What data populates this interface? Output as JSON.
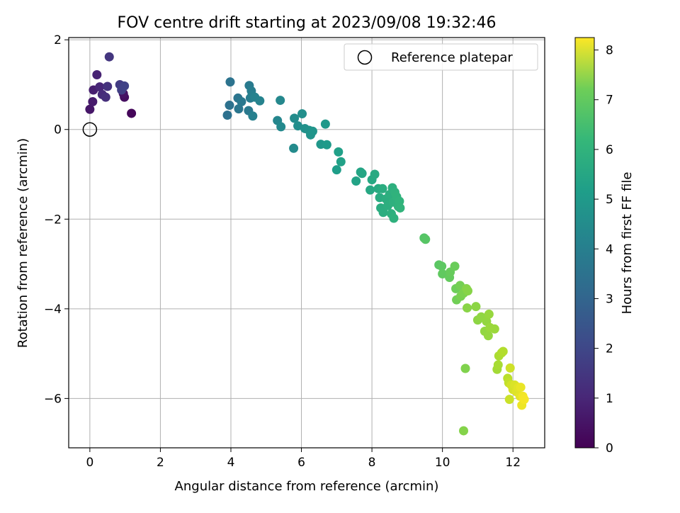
{
  "chart_data": {
    "type": "scatter",
    "title": "FOV centre drift starting at 2023/09/08 19:32:46",
    "xlabel": "Angular distance from reference (arcmin)",
    "ylabel": "Rotation from reference (arcmin)",
    "xlim": [
      -0.6,
      12.9
    ],
    "ylim": [
      -7.1,
      2.05
    ],
    "xticks": [
      0,
      2,
      4,
      6,
      8,
      10,
      12
    ],
    "yticks": [
      -6,
      -4,
      -2,
      0,
      2
    ],
    "xtick_labels": [
      "0",
      "2",
      "4",
      "6",
      "8",
      "10",
      "12"
    ],
    "ytick_labels": [
      "−6",
      "−4",
      "−2",
      "0",
      "2"
    ],
    "grid": true,
    "legend": {
      "placement": "top-right",
      "label": "Reference platepar"
    },
    "reference_point": {
      "x": 0,
      "y": 0
    },
    "colorbar": {
      "label": "Hours from first FF file",
      "range": [
        0,
        8.25
      ],
      "ticks": [
        0,
        1,
        2,
        3,
        4,
        5,
        6,
        7,
        8
      ],
      "tick_labels": [
        "0",
        "1",
        "2",
        "3",
        "4",
        "5",
        "6",
        "7",
        "8"
      ],
      "colormap": "viridis"
    },
    "points": [
      [
        1.18,
        0.36,
        0.15
      ],
      [
        0.98,
        0.72,
        0.3
      ],
      [
        0.95,
        0.8,
        0.4
      ],
      [
        0.0,
        0.45,
        0.5
      ],
      [
        0.08,
        0.62,
        0.6
      ],
      [
        0.1,
        0.88,
        0.7
      ],
      [
        0.2,
        1.22,
        0.8
      ],
      [
        0.28,
        0.95,
        0.9
      ],
      [
        0.35,
        0.78,
        1.0
      ],
      [
        0.45,
        0.72,
        1.1
      ],
      [
        0.5,
        0.96,
        1.2
      ],
      [
        0.55,
        1.62,
        1.3
      ],
      [
        0.85,
        1.0,
        1.45
      ],
      [
        0.9,
        0.88,
        1.55
      ],
      [
        0.98,
        0.97,
        1.65
      ],
      [
        3.9,
        0.32,
        3.05
      ],
      [
        3.96,
        0.54,
        3.1
      ],
      [
        3.98,
        1.06,
        3.15
      ],
      [
        4.2,
        0.7,
        3.2
      ],
      [
        4.22,
        0.46,
        3.25
      ],
      [
        4.3,
        0.62,
        3.3
      ],
      [
        4.5,
        0.42,
        3.35
      ],
      [
        4.52,
        0.98,
        3.4
      ],
      [
        4.55,
        0.7,
        3.45
      ],
      [
        4.58,
        0.86,
        3.5
      ],
      [
        4.6,
        0.76,
        3.55
      ],
      [
        4.62,
        0.3,
        3.6
      ],
      [
        4.68,
        0.72,
        3.65
      ],
      [
        4.82,
        0.64,
        3.7
      ],
      [
        5.32,
        0.2,
        3.8
      ],
      [
        5.4,
        0.65,
        3.85
      ],
      [
        5.42,
        0.06,
        3.9
      ],
      [
        5.78,
        -0.42,
        3.95
      ],
      [
        5.8,
        0.25,
        4.0
      ],
      [
        5.9,
        0.08,
        4.05
      ],
      [
        6.02,
        0.35,
        4.1
      ],
      [
        6.1,
        0.02,
        4.15
      ],
      [
        6.22,
        -0.02,
        4.2
      ],
      [
        6.26,
        -0.12,
        4.25
      ],
      [
        6.32,
        -0.04,
        4.3
      ],
      [
        6.55,
        -0.33,
        4.35
      ],
      [
        6.68,
        0.12,
        4.4
      ],
      [
        6.72,
        -0.34,
        4.45
      ],
      [
        7.0,
        -0.9,
        4.6
      ],
      [
        7.05,
        -0.5,
        4.65
      ],
      [
        7.12,
        -0.72,
        4.7
      ],
      [
        7.55,
        -1.15,
        4.75
      ],
      [
        7.68,
        -0.95,
        4.8
      ],
      [
        7.72,
        -0.98,
        4.85
      ],
      [
        7.95,
        -1.35,
        4.9
      ],
      [
        8.0,
        -1.12,
        4.95
      ],
      [
        8.08,
        -1.0,
        5.0
      ],
      [
        8.18,
        -1.32,
        5.02
      ],
      [
        8.22,
        -1.52,
        5.05
      ],
      [
        8.25,
        -1.75,
        5.08
      ],
      [
        8.3,
        -1.32,
        5.1
      ],
      [
        8.32,
        -1.85,
        5.12
      ],
      [
        8.4,
        -1.55,
        5.14
      ],
      [
        8.45,
        -1.7,
        5.16
      ],
      [
        8.5,
        -1.45,
        5.18
      ],
      [
        8.55,
        -1.88,
        5.2
      ],
      [
        8.58,
        -1.3,
        5.22
      ],
      [
        8.6,
        -1.62,
        5.24
      ],
      [
        8.62,
        -1.98,
        5.26
      ],
      [
        8.65,
        -1.4,
        5.28
      ],
      [
        8.7,
        -1.5,
        5.3
      ],
      [
        8.75,
        -1.72,
        5.32
      ],
      [
        8.78,
        -1.6,
        5.34
      ],
      [
        8.8,
        -1.75,
        5.36
      ],
      [
        9.48,
        -2.42,
        6.0
      ],
      [
        9.52,
        -2.45,
        6.05
      ],
      [
        9.9,
        -3.02,
        6.1
      ],
      [
        9.98,
        -3.05,
        6.15
      ],
      [
        10.0,
        -3.22,
        6.2
      ],
      [
        10.2,
        -3.3,
        6.25
      ],
      [
        10.22,
        -3.18,
        6.3
      ],
      [
        10.35,
        -3.05,
        6.35
      ],
      [
        10.38,
        -3.55,
        6.4
      ],
      [
        10.4,
        -3.8,
        6.45
      ],
      [
        10.5,
        -3.48,
        6.5
      ],
      [
        10.52,
        -3.72,
        6.55
      ],
      [
        10.6,
        -3.65,
        6.6
      ],
      [
        10.65,
        -5.33,
        6.65
      ],
      [
        10.6,
        -6.72,
        6.7
      ],
      [
        10.68,
        -3.55,
        6.72
      ],
      [
        10.72,
        -3.6,
        6.74
      ],
      [
        10.7,
        -3.98,
        6.76
      ],
      [
        10.95,
        -3.95,
        6.8
      ],
      [
        11.0,
        -4.25,
        6.82
      ],
      [
        11.1,
        -4.18,
        6.85
      ],
      [
        11.2,
        -4.5,
        6.88
      ],
      [
        11.25,
        -4.28,
        6.9
      ],
      [
        11.3,
        -4.6,
        6.92
      ],
      [
        11.32,
        -4.12,
        6.95
      ],
      [
        11.35,
        -4.42,
        6.98
      ],
      [
        11.48,
        -4.45,
        7.0
      ],
      [
        11.55,
        -5.35,
        7.1
      ],
      [
        11.58,
        -5.25,
        7.15
      ],
      [
        11.6,
        -5.05,
        7.2
      ],
      [
        11.68,
        -4.98,
        7.25
      ],
      [
        11.72,
        -4.95,
        7.3
      ],
      [
        11.85,
        -5.55,
        7.4
      ],
      [
        11.88,
        -5.65,
        7.5
      ],
      [
        11.9,
        -6.02,
        7.6
      ],
      [
        11.92,
        -5.32,
        7.65
      ],
      [
        11.95,
        -5.7,
        7.7
      ],
      [
        12.0,
        -5.8,
        7.75
      ],
      [
        12.05,
        -5.7,
        7.8
      ],
      [
        12.1,
        -5.85,
        7.85
      ],
      [
        12.15,
        -5.75,
        7.9
      ],
      [
        12.2,
        -5.95,
        7.95
      ],
      [
        12.22,
        -5.75,
        8.0
      ],
      [
        12.25,
        -6.15,
        8.05
      ],
      [
        12.28,
        -5.95,
        8.1
      ],
      [
        12.32,
        -6.02,
        8.15
      ]
    ]
  }
}
